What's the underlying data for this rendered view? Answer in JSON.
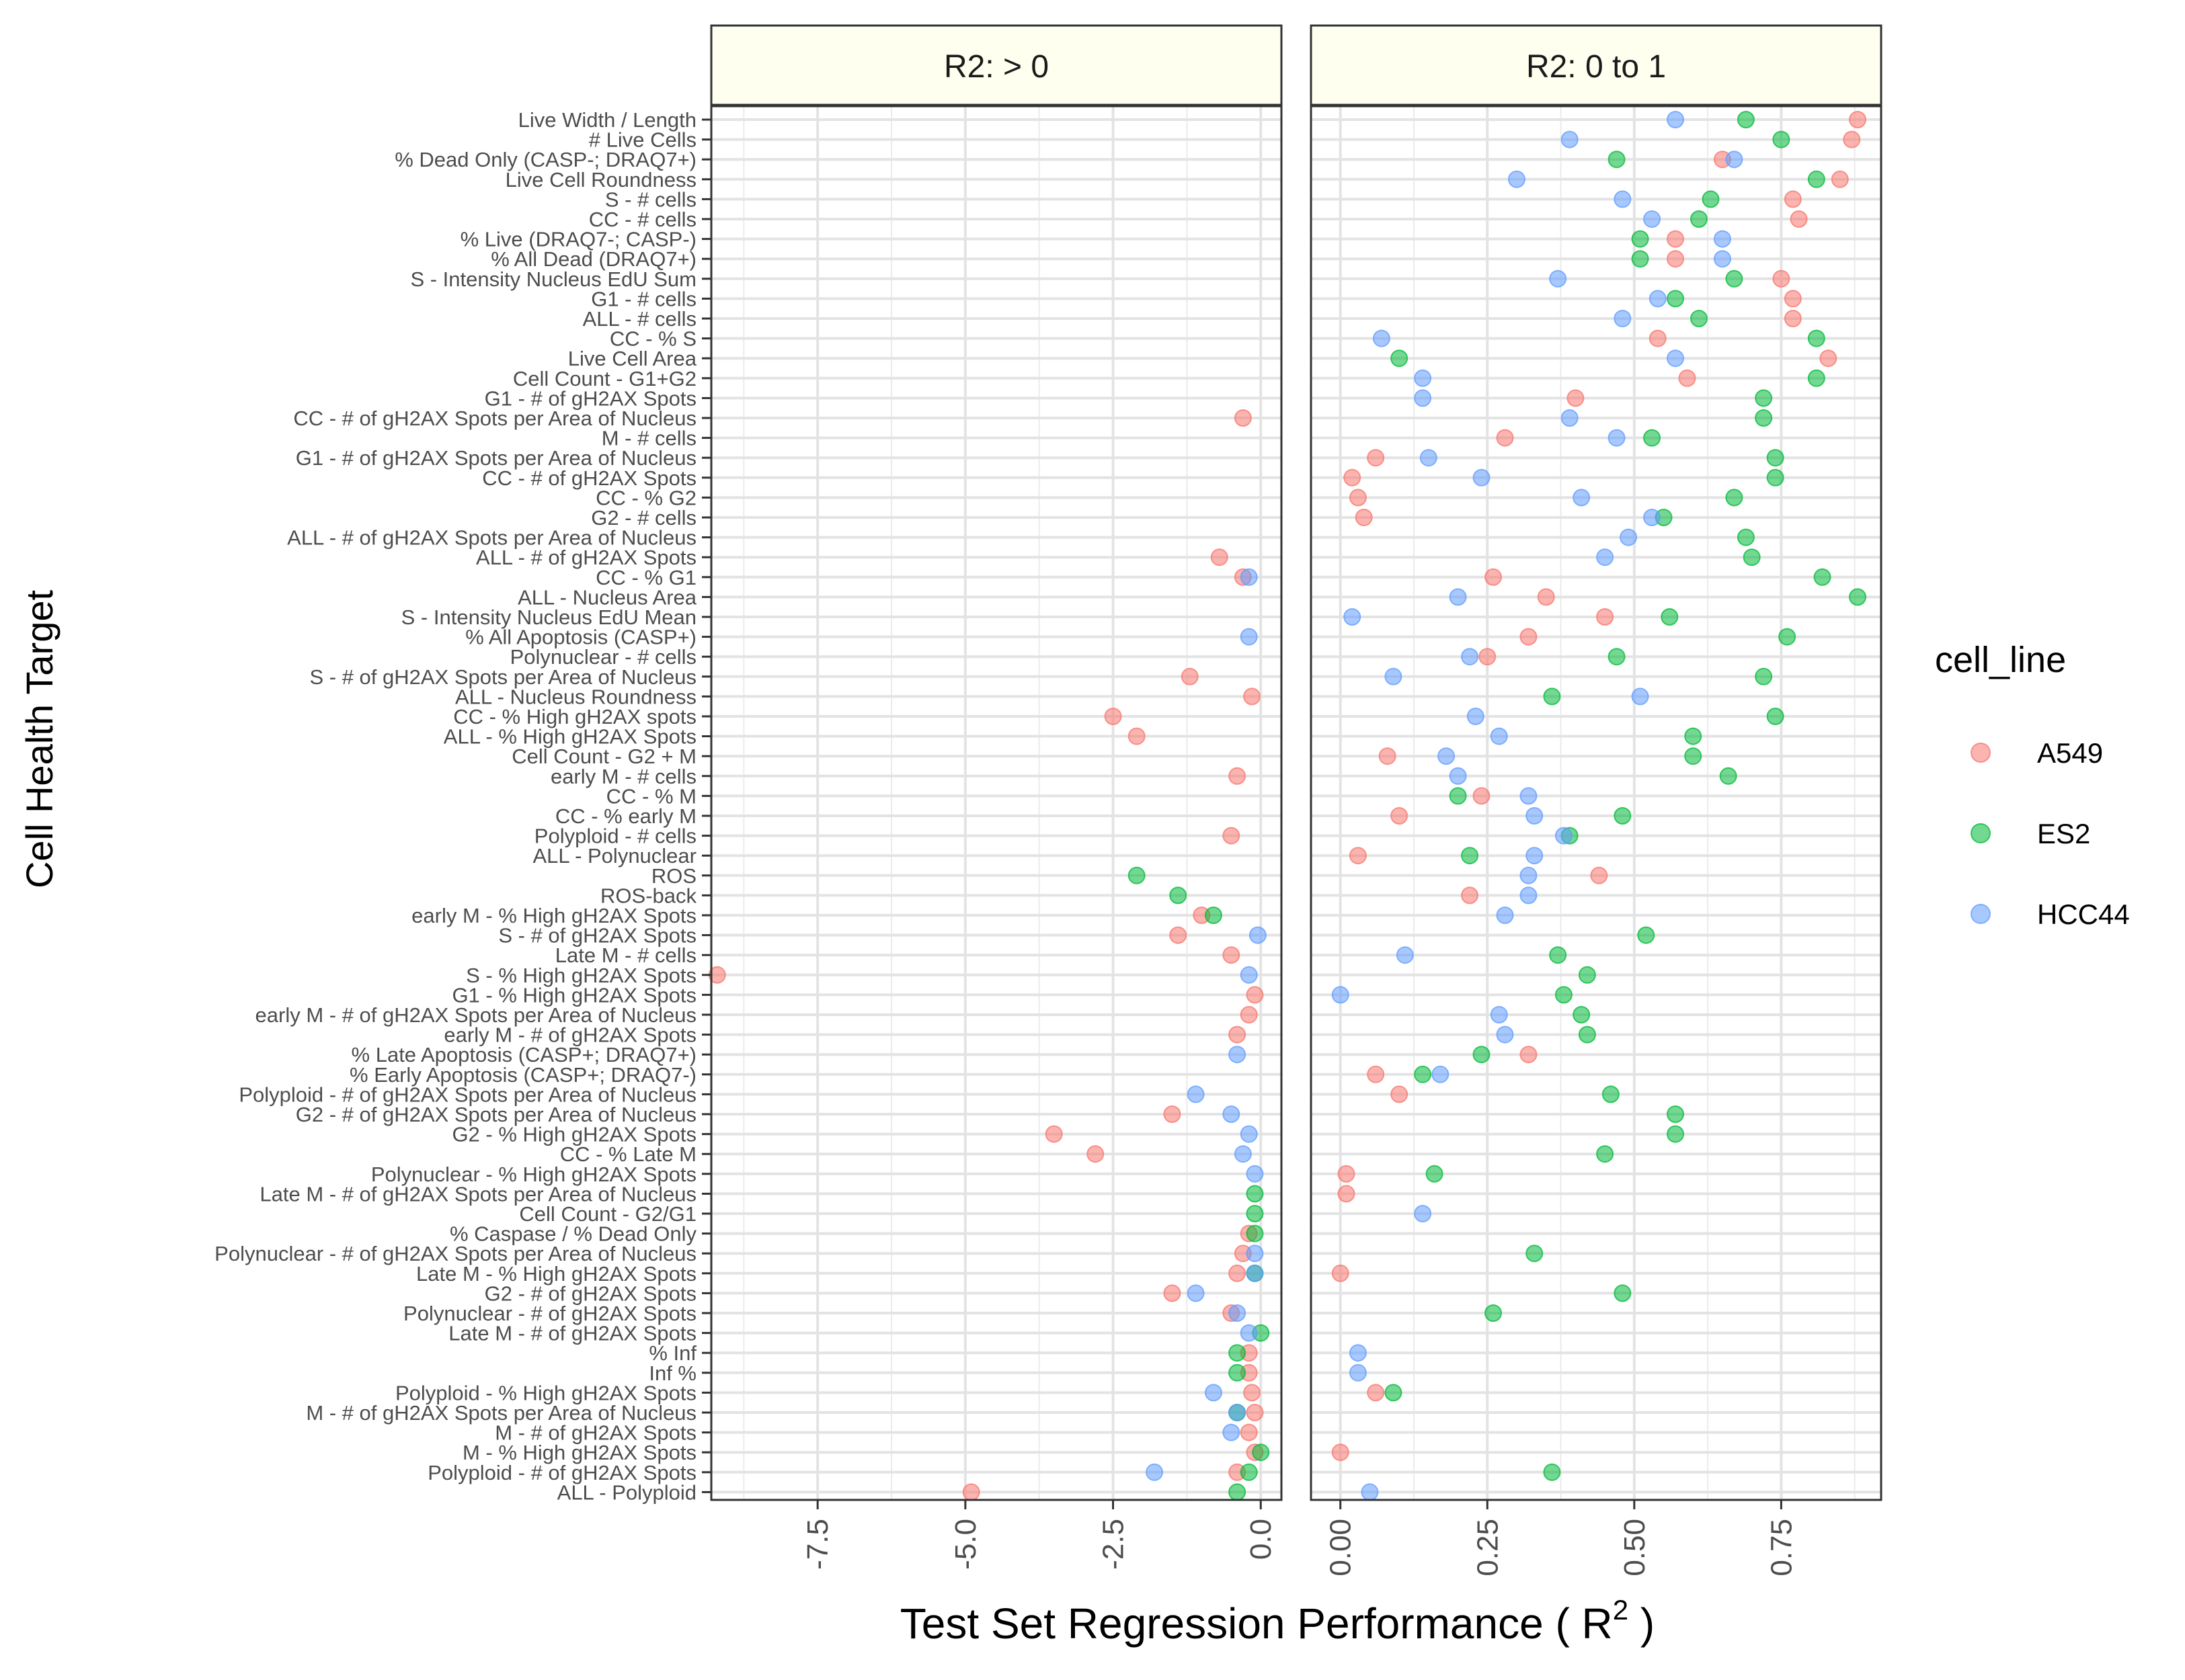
{
  "chart_data": {
    "type": "scatter",
    "ylabel": "Cell Health Target",
    "xlabel_main": "Test Set Regression Performance ( R",
    "xlabel_sup": "2",
    "xlabel_end": " )",
    "legend": {
      "title": "cell_line",
      "position": "right",
      "items": [
        {
          "name": "A549",
          "color": "#F8766D"
        },
        {
          "name": "ES2",
          "color": "#00BA38"
        },
        {
          "name": "HCC44",
          "color": "#619CFF"
        }
      ]
    },
    "panels": [
      {
        "label": "R2: > 0",
        "xlim": [
          -9.3,
          0.35
        ],
        "ticks": [
          -7.5,
          -5.0,
          -2.5,
          0.0
        ],
        "tick_labels": [
          "-7.5",
          "-5.0",
          "-2.5",
          "0.0"
        ]
      },
      {
        "label": "R2: 0 to 1",
        "xlim": [
          -0.05,
          0.92
        ],
        "ticks": [
          0.0,
          0.25,
          0.5,
          0.75
        ],
        "tick_labels": [
          "0.00",
          "0.25",
          "0.50",
          "0.75"
        ]
      }
    ],
    "categories": [
      "Live Width / Length",
      "# Live Cells",
      "% Dead Only (CASP-; DRAQ7+)",
      "Live Cell Roundness",
      "S - # cells",
      "CC - # cells",
      "% Live (DRAQ7-; CASP-)",
      "% All Dead (DRAQ7+)",
      "S - Intensity Nucleus EdU Sum",
      "G1 - # cells",
      "ALL - # cells",
      "CC - % S",
      "Live Cell Area",
      "Cell Count - G1+G2",
      "G1 - # of gH2AX Spots",
      "CC - # of gH2AX Spots per Area of Nucleus",
      "M - # cells",
      "G1 - # of gH2AX Spots per Area of Nucleus",
      "CC - # of gH2AX Spots",
      "CC - % G2",
      "G2 - # cells",
      "ALL - # of gH2AX Spots per Area of Nucleus",
      "ALL - # of gH2AX Spots",
      "CC - % G1",
      "ALL - Nucleus Area",
      "S - Intensity Nucleus EdU Mean",
      "% All Apoptosis (CASP+)",
      "Polynuclear - # cells",
      "S - # of gH2AX Spots per Area of Nucleus",
      "ALL - Nucleus Roundness",
      "CC - % High gH2AX spots",
      "ALL - % High gH2AX Spots",
      "Cell Count - G2 + M",
      "early M - # cells",
      "CC - % M",
      "CC - % early M",
      "Polyploid - # cells",
      "ALL - Polynuclear",
      "ROS",
      "ROS-back",
      "early M - % High gH2AX Spots",
      "S - # of gH2AX Spots",
      "Late M - # cells",
      "S - % High gH2AX Spots",
      "G1 - % High gH2AX Spots",
      "early M - # of gH2AX Spots per Area of Nucleus",
      "early M - # of gH2AX Spots",
      "% Late Apoptosis (CASP+; DRAQ7+)",
      "% Early Apoptosis (CASP+; DRAQ7-)",
      "Polyploid - # of gH2AX Spots per Area of Nucleus",
      "G2 - # of gH2AX Spots per Area of Nucleus",
      "G2 - % High gH2AX Spots",
      "CC - % Late M",
      "Polynuclear - % High gH2AX Spots",
      "Late M - # of gH2AX Spots per Area of Nucleus",
      "Cell Count - G2/G1",
      "% Caspase / % Dead Only",
      "Polynuclear - # of gH2AX Spots per Area of Nucleus",
      "Late M - % High gH2AX Spots",
      "G2 - # of gH2AX Spots",
      "Polynuclear - # of gH2AX Spots",
      "Late M - # of gH2AX Spots",
      "% Inf",
      "Inf %",
      "Polyploid - % High gH2AX Spots",
      "M - # of gH2AX Spots per Area of Nucleus",
      "M - # of gH2AX Spots",
      "M - % High gH2AX Spots",
      "Polyploid - # of gH2AX Spots",
      "ALL - Polyploid"
    ],
    "series": [
      {
        "name": "A549",
        "panel0": [
          [
            15,
            -0.3
          ],
          [
            22,
            -0.7
          ],
          [
            23,
            -0.3
          ],
          [
            28,
            -1.2
          ],
          [
            29,
            -0.15
          ],
          [
            30,
            -2.5
          ],
          [
            31,
            -2.1
          ],
          [
            33,
            -0.4
          ],
          [
            36,
            -0.5
          ],
          [
            40,
            -1.0
          ],
          [
            41,
            -1.4
          ],
          [
            42,
            -0.5
          ],
          [
            43,
            -9.2
          ],
          [
            44,
            -0.1
          ],
          [
            45,
            -0.2
          ],
          [
            46,
            -0.4
          ],
          [
            50,
            -1.5
          ],
          [
            51,
            -3.5
          ],
          [
            52,
            -2.8
          ],
          [
            56,
            -0.2
          ],
          [
            57,
            -0.3
          ],
          [
            58,
            -0.4
          ],
          [
            59,
            -1.5
          ],
          [
            60,
            -0.5
          ],
          [
            62,
            -0.2
          ],
          [
            63,
            -0.2
          ],
          [
            64,
            -0.15
          ],
          [
            65,
            -0.1
          ],
          [
            66,
            -0.2
          ],
          [
            67,
            -0.1
          ],
          [
            68,
            -0.4
          ],
          [
            69,
            -4.9
          ]
        ],
        "panel1": [
          [
            0,
            0.88
          ],
          [
            1,
            0.87
          ],
          [
            2,
            0.65
          ],
          [
            3,
            0.85
          ],
          [
            4,
            0.77
          ],
          [
            5,
            0.78
          ],
          [
            6,
            0.57
          ],
          [
            7,
            0.57
          ],
          [
            8,
            0.75
          ],
          [
            9,
            0.77
          ],
          [
            10,
            0.77
          ],
          [
            11,
            0.54
          ],
          [
            12,
            0.83
          ],
          [
            13,
            0.59
          ],
          [
            14,
            0.4
          ],
          [
            16,
            0.28
          ],
          [
            17,
            0.06
          ],
          [
            18,
            0.02
          ],
          [
            19,
            0.03
          ],
          [
            20,
            0.04
          ],
          [
            23,
            0.26
          ],
          [
            24,
            0.35
          ],
          [
            25,
            0.45
          ],
          [
            26,
            0.32
          ],
          [
            27,
            0.25
          ],
          [
            32,
            0.08
          ],
          [
            34,
            0.24
          ],
          [
            35,
            0.1
          ],
          [
            37,
            0.03
          ],
          [
            38,
            0.44
          ],
          [
            39,
            0.22
          ],
          [
            47,
            0.32
          ],
          [
            48,
            0.06
          ],
          [
            49,
            0.1
          ],
          [
            53,
            0.01
          ],
          [
            54,
            0.01
          ],
          [
            58,
            0.0
          ],
          [
            64,
            0.06
          ],
          [
            67,
            0.0
          ]
        ]
      },
      {
        "name": "ES2",
        "panel0": [
          [
            39,
            -1.4
          ],
          [
            38,
            -2.1
          ],
          [
            40,
            -0.8
          ],
          [
            54,
            -0.1
          ],
          [
            55,
            -0.1
          ],
          [
            56,
            -0.1
          ],
          [
            58,
            -0.1
          ],
          [
            61,
            0.0
          ],
          [
            62,
            -0.4
          ],
          [
            63,
            -0.4
          ],
          [
            65,
            -0.4
          ],
          [
            67,
            0.0
          ],
          [
            68,
            -0.2
          ],
          [
            69,
            -0.4
          ]
        ],
        "panel1": [
          [
            0,
            0.69
          ],
          [
            1,
            0.75
          ],
          [
            2,
            0.47
          ],
          [
            3,
            0.81
          ],
          [
            4,
            0.63
          ],
          [
            5,
            0.61
          ],
          [
            6,
            0.51
          ],
          [
            7,
            0.51
          ],
          [
            8,
            0.67
          ],
          [
            9,
            0.57
          ],
          [
            10,
            0.61
          ],
          [
            11,
            0.81
          ],
          [
            12,
            0.1
          ],
          [
            13,
            0.81
          ],
          [
            14,
            0.72
          ],
          [
            15,
            0.72
          ],
          [
            16,
            0.53
          ],
          [
            17,
            0.74
          ],
          [
            18,
            0.74
          ],
          [
            19,
            0.67
          ],
          [
            20,
            0.55
          ],
          [
            21,
            0.69
          ],
          [
            22,
            0.7
          ],
          [
            23,
            0.82
          ],
          [
            24,
            0.88
          ],
          [
            25,
            0.56
          ],
          [
            26,
            0.76
          ],
          [
            27,
            0.47
          ],
          [
            28,
            0.72
          ],
          [
            29,
            0.36
          ],
          [
            30,
            0.74
          ],
          [
            31,
            0.6
          ],
          [
            32,
            0.6
          ],
          [
            33,
            0.66
          ],
          [
            34,
            0.2
          ],
          [
            35,
            0.48
          ],
          [
            36,
            0.39
          ],
          [
            37,
            0.22
          ],
          [
            41,
            0.52
          ],
          [
            42,
            0.37
          ],
          [
            43,
            0.42
          ],
          [
            44,
            0.38
          ],
          [
            45,
            0.41
          ],
          [
            46,
            0.42
          ],
          [
            47,
            0.24
          ],
          [
            48,
            0.14
          ],
          [
            49,
            0.46
          ],
          [
            50,
            0.57
          ],
          [
            51,
            0.57
          ],
          [
            52,
            0.45
          ],
          [
            53,
            0.16
          ],
          [
            57,
            0.33
          ],
          [
            59,
            0.48
          ],
          [
            60,
            0.26
          ],
          [
            64,
            0.09
          ],
          [
            68,
            0.36
          ]
        ]
      },
      {
        "name": "HCC44",
        "panel0": [
          [
            23,
            -0.2
          ],
          [
            26,
            -0.2
          ],
          [
            41,
            -0.05
          ],
          [
            43,
            -0.2
          ],
          [
            47,
            -0.4
          ],
          [
            49,
            -1.1
          ],
          [
            50,
            -0.5
          ],
          [
            51,
            -0.2
          ],
          [
            52,
            -0.3
          ],
          [
            53,
            -0.1
          ],
          [
            57,
            -0.1
          ],
          [
            58,
            -0.1
          ],
          [
            59,
            -1.1
          ],
          [
            60,
            -0.4
          ],
          [
            61,
            -0.2
          ],
          [
            64,
            -0.8
          ],
          [
            65,
            -0.4
          ],
          [
            66,
            -0.5
          ],
          [
            68,
            -1.8
          ]
        ],
        "panel1": [
          [
            0,
            0.57
          ],
          [
            1,
            0.39
          ],
          [
            2,
            0.67
          ],
          [
            3,
            0.3
          ],
          [
            4,
            0.48
          ],
          [
            5,
            0.53
          ],
          [
            6,
            0.65
          ],
          [
            7,
            0.65
          ],
          [
            8,
            0.37
          ],
          [
            9,
            0.54
          ],
          [
            10,
            0.48
          ],
          [
            11,
            0.07
          ],
          [
            12,
            0.57
          ],
          [
            13,
            0.14
          ],
          [
            14,
            0.14
          ],
          [
            15,
            0.39
          ],
          [
            16,
            0.47
          ],
          [
            17,
            0.15
          ],
          [
            18,
            0.24
          ],
          [
            19,
            0.41
          ],
          [
            20,
            0.53
          ],
          [
            21,
            0.49
          ],
          [
            22,
            0.45
          ],
          [
            24,
            0.2
          ],
          [
            25,
            0.02
          ],
          [
            27,
            0.22
          ],
          [
            28,
            0.09
          ],
          [
            29,
            0.51
          ],
          [
            30,
            0.23
          ],
          [
            31,
            0.27
          ],
          [
            32,
            0.18
          ],
          [
            33,
            0.2
          ],
          [
            34,
            0.32
          ],
          [
            35,
            0.33
          ],
          [
            36,
            0.38
          ],
          [
            37,
            0.33
          ],
          [
            38,
            0.32
          ],
          [
            39,
            0.32
          ],
          [
            40,
            0.28
          ],
          [
            42,
            0.11
          ],
          [
            44,
            0.0
          ],
          [
            45,
            0.27
          ],
          [
            46,
            0.28
          ],
          [
            48,
            0.17
          ],
          [
            55,
            0.14
          ],
          [
            62,
            0.03
          ],
          [
            63,
            0.03
          ],
          [
            69,
            0.05
          ]
        ]
      }
    ]
  }
}
